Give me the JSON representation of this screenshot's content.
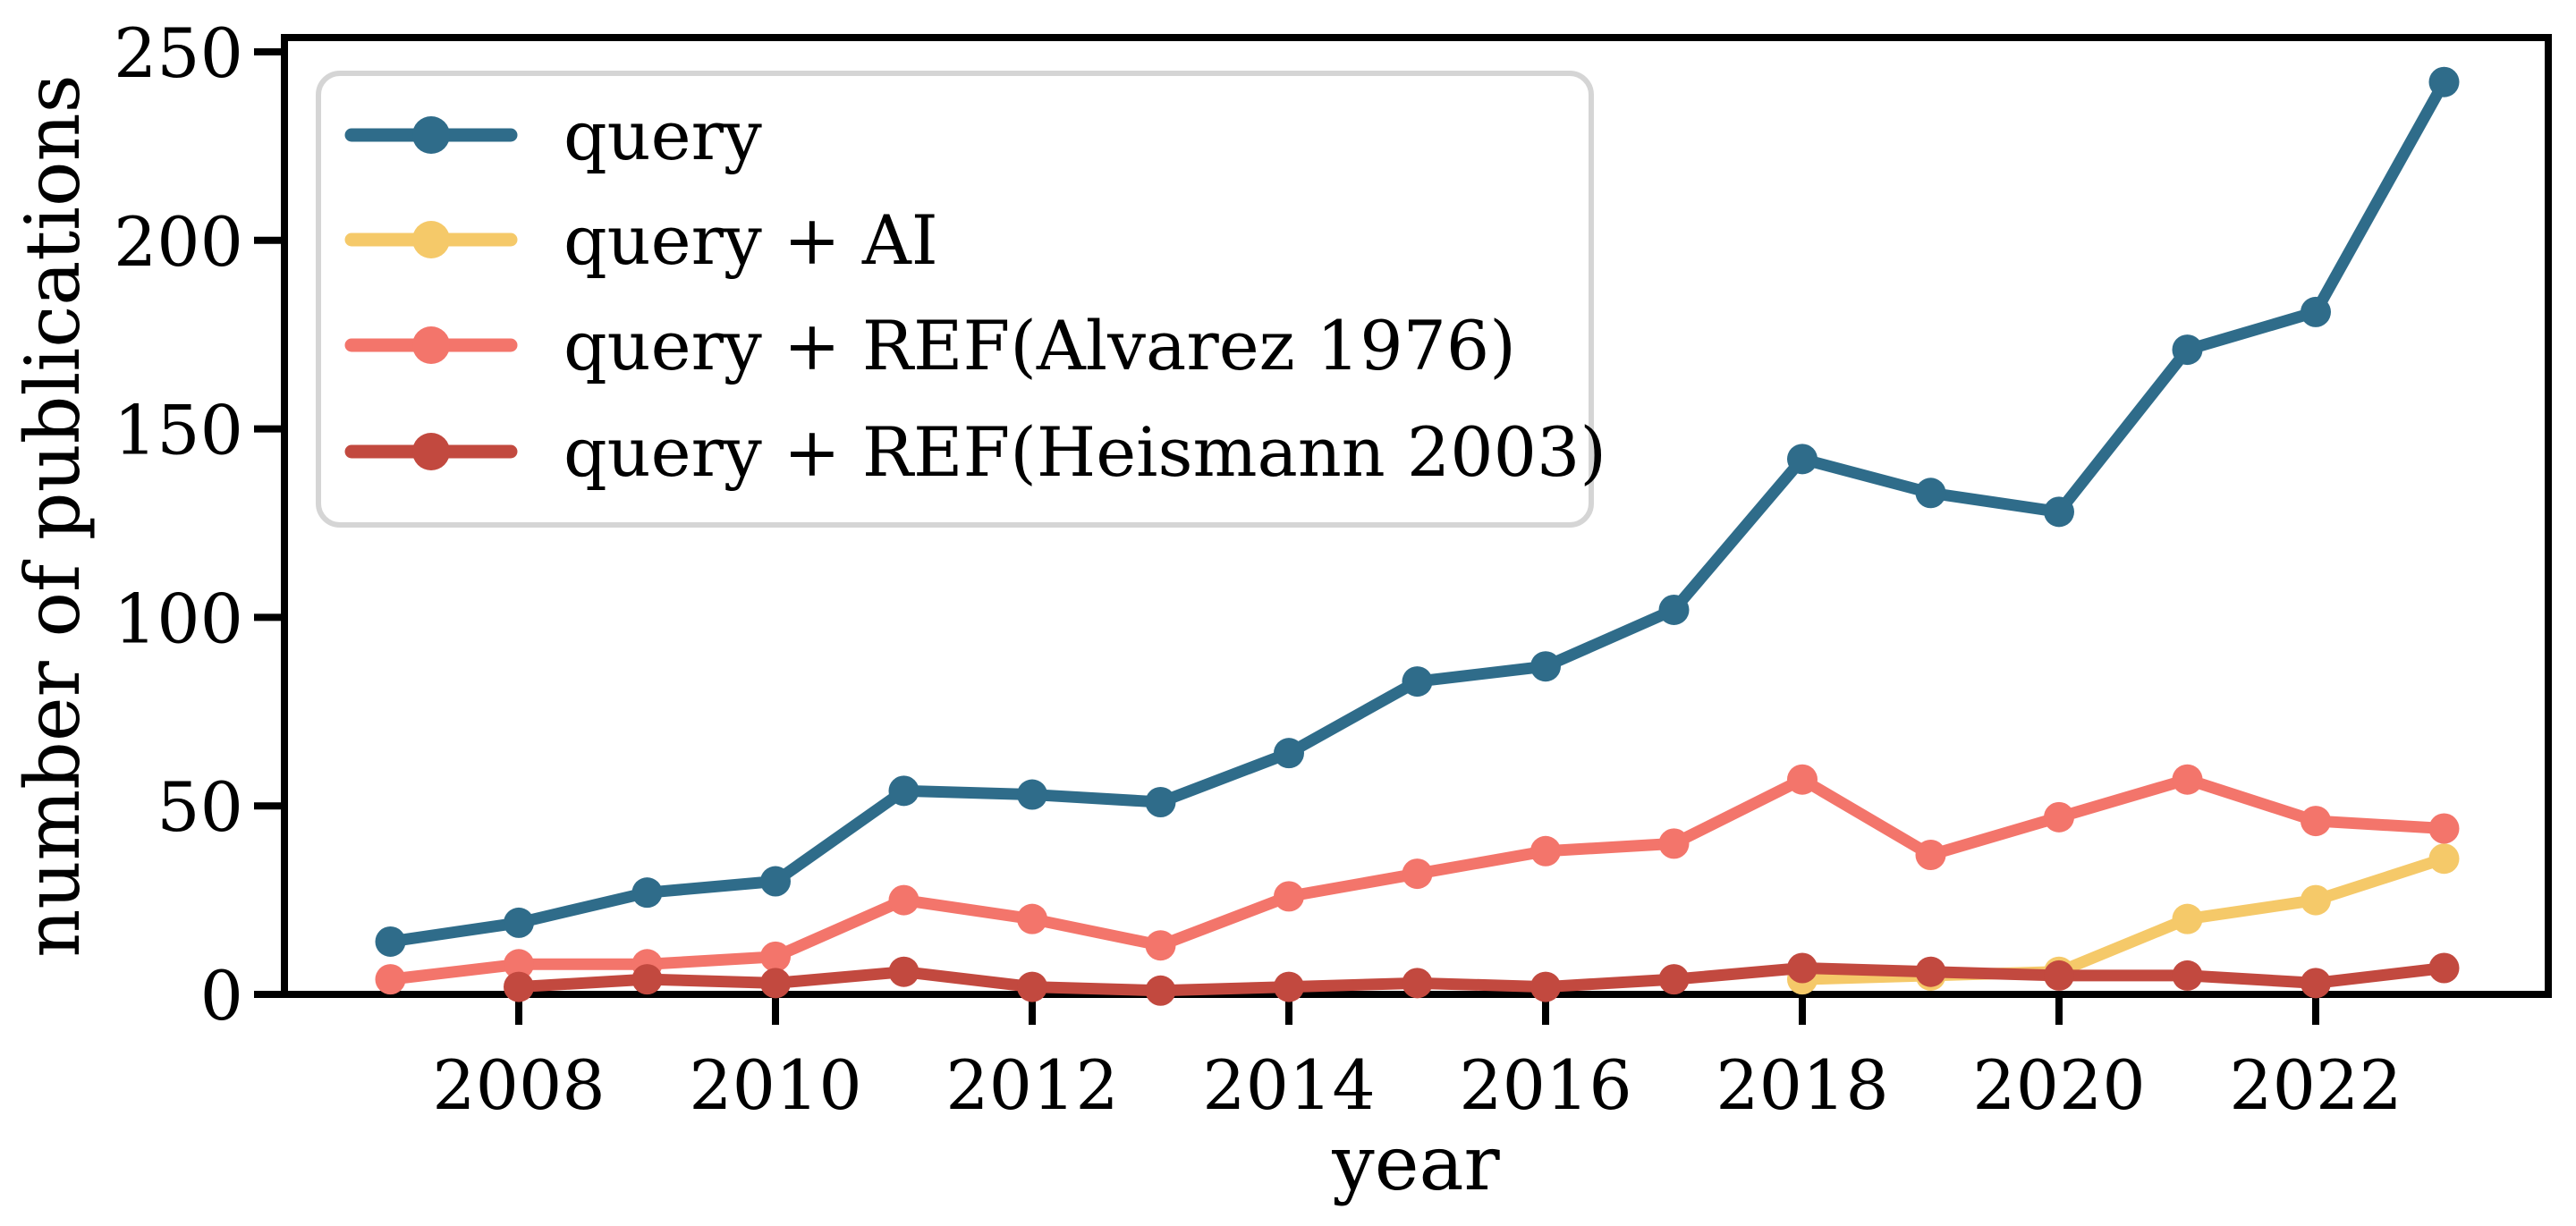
{
  "figure": {
    "xlabel": "year",
    "ylabel": "number of publications"
  },
  "axes": {
    "y_tick_labels": [
      "0",
      "50",
      "100",
      "150",
      "200",
      "250"
    ],
    "x_tick_labels": [
      "2008",
      "2010",
      "2012",
      "2014",
      "2016",
      "2018",
      "2020",
      "2022"
    ],
    "spine_color": "#000000",
    "background_color": "#ffffff",
    "legend_border_color": "#d5d5d5"
  },
  "chart_data": {
    "type": "line",
    "title": "",
    "xlabel": "year",
    "ylabel": "number of publications",
    "x": [
      2007,
      2008,
      2009,
      2010,
      2011,
      2012,
      2013,
      2014,
      2015,
      2016,
      2017,
      2018,
      2019,
      2020,
      2021,
      2022,
      2023
    ],
    "series": [
      {
        "name": "query",
        "color": "#2F6C8A",
        "values": [
          14,
          19,
          27,
          30,
          54,
          53,
          51,
          64,
          83,
          87,
          102,
          142,
          133,
          128,
          171,
          181,
          242
        ]
      },
      {
        "name": "query + AI",
        "color": "#F5C969",
        "values": [
          null,
          null,
          null,
          null,
          null,
          null,
          null,
          null,
          null,
          null,
          null,
          4,
          5,
          6,
          20,
          25,
          36
        ]
      },
      {
        "name": "query + REF(Alvarez 1976)",
        "color": "#F3756B",
        "values": [
          4,
          8,
          8,
          10,
          25,
          20,
          13,
          26,
          32,
          38,
          40,
          57,
          37,
          47,
          57,
          46,
          44
        ]
      },
      {
        "name": "query + REF(Heismann 2003)",
        "color": "#C2493F",
        "values": [
          null,
          2,
          4,
          3,
          6,
          2,
          1,
          2,
          3,
          2,
          4,
          7,
          6,
          5,
          5,
          3,
          7
        ]
      }
    ],
    "y_ticks": [
      0,
      50,
      100,
      150,
      200,
      250
    ],
    "x_ticks": [
      2008,
      2010,
      2012,
      2014,
      2016,
      2018,
      2020,
      2022
    ],
    "ylim": [
      0,
      253
    ],
    "xlim": [
      2006.2,
      2023.8
    ],
    "grid": false,
    "legend_position": "upper left"
  }
}
